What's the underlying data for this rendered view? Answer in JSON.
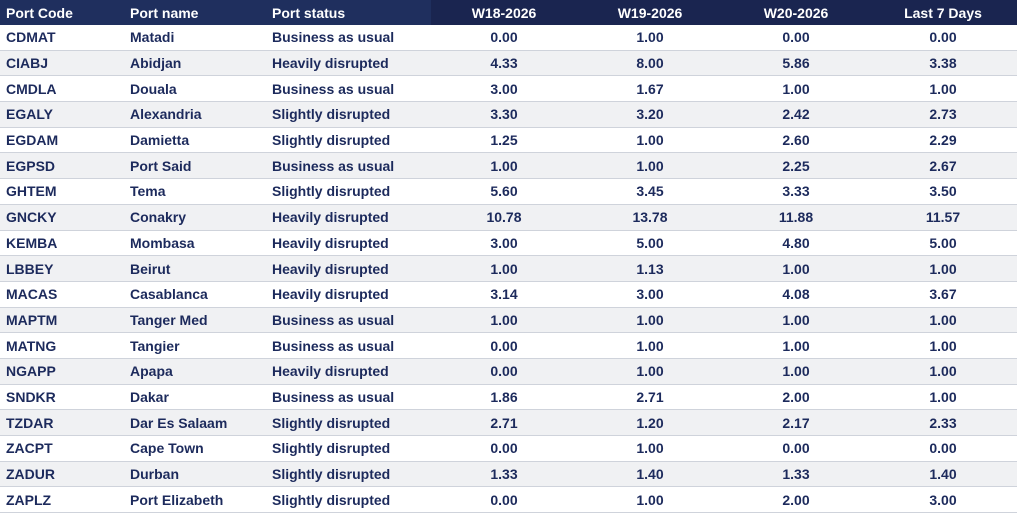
{
  "table": {
    "headers": [
      "Port Code",
      "Port name",
      "Port status",
      "W18-2026",
      "W19-2026",
      "W20-2026",
      "Last 7 Days"
    ],
    "rows": [
      [
        "CDMAT",
        "Matadi",
        "Business as usual",
        "0.00",
        "1.00",
        "0.00",
        "0.00"
      ],
      [
        "CIABJ",
        "Abidjan",
        "Heavily disrupted",
        "4.33",
        "8.00",
        "5.86",
        "3.38"
      ],
      [
        "CMDLA",
        "Douala",
        "Business as usual",
        "3.00",
        "1.67",
        "1.00",
        "1.00"
      ],
      [
        "EGALY",
        "Alexandria",
        "Slightly disrupted",
        "3.30",
        "3.20",
        "2.42",
        "2.73"
      ],
      [
        "EGDAM",
        "Damietta",
        "Slightly disrupted",
        "1.25",
        "1.00",
        "2.60",
        "2.29"
      ],
      [
        "EGPSD",
        "Port Said",
        "Business as usual",
        "1.00",
        "1.00",
        "2.25",
        "2.67"
      ],
      [
        "GHTEM",
        "Tema",
        "Slightly disrupted",
        "5.60",
        "3.45",
        "3.33",
        "3.50"
      ],
      [
        "GNCKY",
        "Conakry",
        "Heavily disrupted",
        "10.78",
        "13.78",
        "11.88",
        "11.57"
      ],
      [
        "KEMBA",
        "Mombasa",
        "Heavily disrupted",
        "3.00",
        "5.00",
        "4.80",
        "5.00"
      ],
      [
        "LBBEY",
        "Beirut",
        "Heavily disrupted",
        "1.00",
        "1.13",
        "1.00",
        "1.00"
      ],
      [
        "MACAS",
        "Casablanca",
        "Heavily disrupted",
        "3.14",
        "3.00",
        "4.08",
        "3.67"
      ],
      [
        "MAPTM",
        "Tanger Med",
        "Business as usual",
        "1.00",
        "1.00",
        "1.00",
        "1.00"
      ],
      [
        "MATNG",
        "Tangier",
        "Business as usual",
        "0.00",
        "1.00",
        "1.00",
        "1.00"
      ],
      [
        "NGAPP",
        "Apapa",
        "Heavily disrupted",
        "0.00",
        "1.00",
        "1.00",
        "1.00"
      ],
      [
        "SNDKR",
        "Dakar",
        "Business as usual",
        "1.86",
        "2.71",
        "2.00",
        "1.00"
      ],
      [
        "TZDAR",
        "Dar Es Salaam",
        "Slightly disrupted",
        "2.71",
        "1.20",
        "2.17",
        "2.33"
      ],
      [
        "ZACPT",
        "Cape Town",
        "Slightly disrupted",
        "0.00",
        "1.00",
        "0.00",
        "0.00"
      ],
      [
        "ZADUR",
        "Durban",
        "Slightly disrupted",
        "1.33",
        "1.40",
        "1.33",
        "1.40"
      ],
      [
        "ZAPLZ",
        "Port Elizabeth",
        "Slightly disrupted",
        "0.00",
        "1.00",
        "2.00",
        "3.00"
      ]
    ]
  },
  "colors": {
    "header_left_bg": "#1f2f5e",
    "header_right_bg": "#1a2550",
    "text": "#1c2a5c",
    "row_alt_bg": "#f0f1f3"
  }
}
